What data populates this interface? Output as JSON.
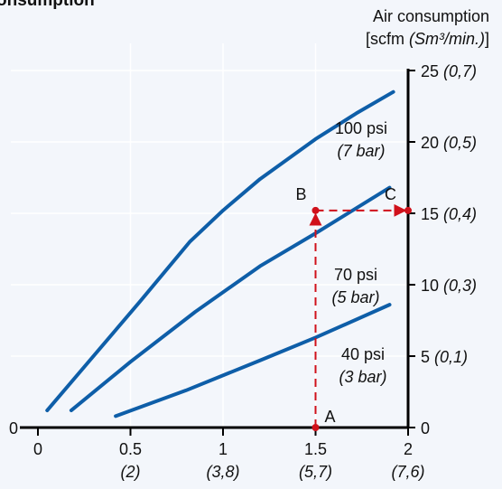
{
  "chart_data": {
    "type": "line",
    "title": "onsumption",
    "y_axis_title": "Air consumption",
    "y_axis_units_prefix": "[scfm ",
    "y_axis_units_italic": "(Sm³/min.)",
    "y_axis_units_suffix": "]",
    "xlim": [
      0,
      2
    ],
    "ylim": [
      0,
      25
    ],
    "x_ticks": [
      {
        "value": 0,
        "label": "0",
        "sublabel": ""
      },
      {
        "value": 0.5,
        "label": "0.5",
        "sublabel": "(2)"
      },
      {
        "value": 1,
        "label": "1",
        "sublabel": "(3,8)"
      },
      {
        "value": 1.5,
        "label": "1.5",
        "sublabel": "(5,7)"
      },
      {
        "value": 2,
        "label": "2",
        "sublabel": "(7,6)"
      }
    ],
    "y_ticks": [
      {
        "value": 0,
        "label": "0",
        "sublabel": ""
      },
      {
        "value": 5,
        "label": "5 ",
        "sublabel": "(0,1)"
      },
      {
        "value": 10,
        "label": "10 ",
        "sublabel": "(0,3)"
      },
      {
        "value": 15,
        "label": "15 ",
        "sublabel": "(0,4)"
      },
      {
        "value": 20,
        "label": "20 ",
        "sublabel": "(0,5)"
      },
      {
        "value": 25,
        "label": "25 ",
        "sublabel": "(0,7)"
      }
    ],
    "left_zero_label": "0",
    "grid": true,
    "series": [
      {
        "name": "100 psi",
        "name_sub": "(7 bar)",
        "x": [
          0.05,
          0.3,
          0.55,
          0.82,
          1.0,
          1.2,
          1.5,
          1.72,
          1.92
        ],
        "y": [
          1.2,
          5.0,
          8.8,
          13.0,
          15.2,
          17.4,
          20.2,
          22.0,
          23.5
        ]
      },
      {
        "name": "70 psi",
        "name_sub": "(5 bar)",
        "x": [
          0.18,
          0.5,
          0.85,
          1.2,
          1.5,
          1.9
        ],
        "y": [
          1.2,
          4.6,
          8.1,
          11.3,
          13.6,
          16.8
        ]
      },
      {
        "name": "40 psi",
        "name_sub": "(3 bar)",
        "x": [
          0.42,
          0.8,
          1.2,
          1.5,
          1.9
        ],
        "y": [
          0.8,
          2.6,
          4.7,
          6.3,
          8.6
        ]
      }
    ],
    "annotations": [
      {
        "label": "A",
        "x": 1.5,
        "y": 0
      },
      {
        "label": "B",
        "x": 1.5,
        "y": 15.2
      },
      {
        "label": "C",
        "x": 1.95,
        "y": 15.2
      }
    ],
    "colors": {
      "series": "#0e5ea8",
      "guide": "#d0111b",
      "grid": "#ffffff",
      "background": "#f3f6fb",
      "axis": "#000000"
    }
  }
}
